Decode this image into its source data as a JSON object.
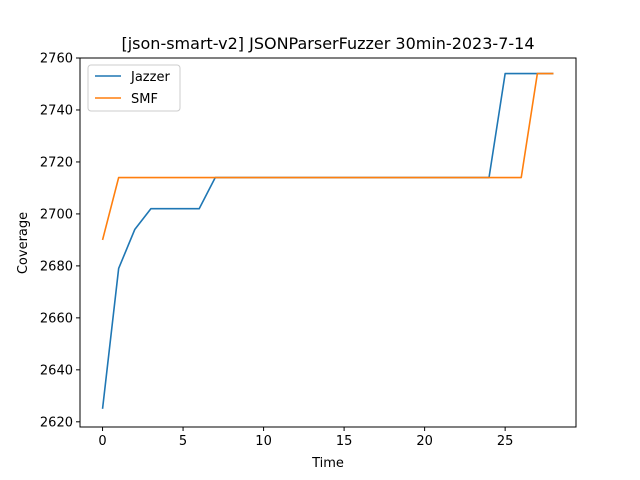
{
  "chart_data": {
    "type": "line",
    "title": "[json-smart-v2] JSONParserFuzzer 30min-2023-7-14",
    "xlabel": "Time",
    "ylabel": "Coverage",
    "xlim": [
      -1.4,
      29.4
    ],
    "ylim": [
      2618,
      2760
    ],
    "xticks": [
      0,
      5,
      10,
      15,
      20,
      25
    ],
    "yticks": [
      2620,
      2640,
      2660,
      2680,
      2700,
      2720,
      2740,
      2760
    ],
    "grid": false,
    "legend": "top-left",
    "series": [
      {
        "name": "Jazzer",
        "color": "#1f77b4",
        "x": [
          0,
          1,
          2,
          3,
          4,
          5,
          6,
          7,
          8,
          9,
          10,
          11,
          12,
          13,
          14,
          15,
          16,
          17,
          18,
          19,
          20,
          21,
          22,
          23,
          24,
          25,
          26,
          27,
          28
        ],
        "y": [
          2625,
          2679,
          2694,
          2702,
          2702,
          2702,
          2702,
          2714,
          2714,
          2714,
          2714,
          2714,
          2714,
          2714,
          2714,
          2714,
          2714,
          2714,
          2714,
          2714,
          2714,
          2714,
          2714,
          2714,
          2714,
          2754,
          2754,
          2754,
          2754
        ]
      },
      {
        "name": "SMF",
        "color": "#ff7f0e",
        "x": [
          0,
          1,
          2,
          3,
          4,
          5,
          6,
          7,
          8,
          9,
          10,
          11,
          12,
          13,
          14,
          15,
          16,
          17,
          18,
          19,
          20,
          21,
          22,
          23,
          24,
          25,
          26,
          27,
          28
        ],
        "y": [
          2690,
          2714,
          2714,
          2714,
          2714,
          2714,
          2714,
          2714,
          2714,
          2714,
          2714,
          2714,
          2714,
          2714,
          2714,
          2714,
          2714,
          2714,
          2714,
          2714,
          2714,
          2714,
          2714,
          2714,
          2714,
          2714,
          2714,
          2754,
          2754
        ]
      }
    ]
  }
}
